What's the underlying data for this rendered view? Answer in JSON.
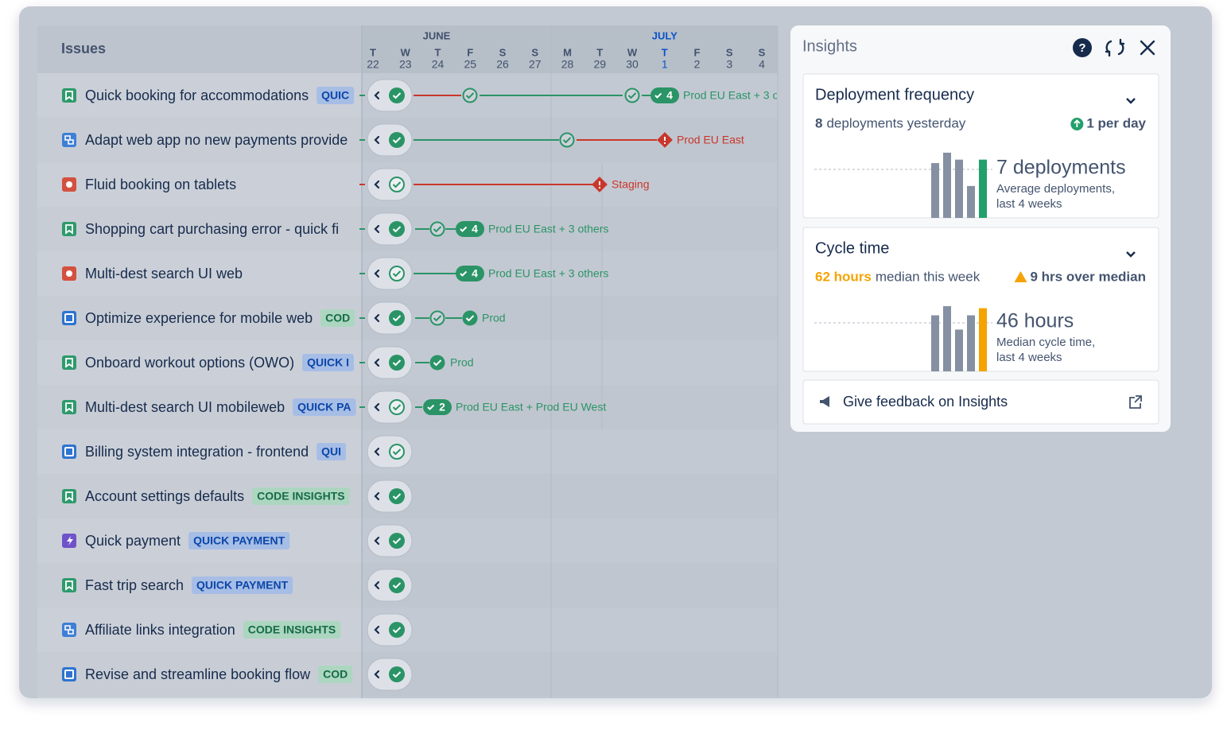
{
  "issues": {
    "header": "Issues",
    "rows": [
      {
        "title": "Quick booking for accommodations",
        "tag": "QUIC",
        "badge": "4",
        "env": "Prod EU East + 3 o"
      },
      {
        "title": "Adapt web app no new payments provide",
        "env": "Prod EU East"
      },
      {
        "title": "Fluid booking on tablets",
        "env": "Staging"
      },
      {
        "title": "Shopping cart purchasing error - quick fi",
        "badge": "4",
        "env": "Prod EU East + 3 others"
      },
      {
        "title": "Multi-dest search UI web",
        "badge": "4",
        "env": "Prod EU East + 3 others"
      },
      {
        "title": "Optimize experience for mobile web",
        "tag": "COD",
        "env": "Prod"
      },
      {
        "title": "Onboard workout options (OWO)",
        "tag": "QUICK I",
        "env": "Prod"
      },
      {
        "title": "Multi-dest search UI mobileweb",
        "tag": "QUICK PA",
        "badge": "2",
        "env": "Prod EU East + Prod EU West"
      },
      {
        "title": "Billing system integration - frontend",
        "tag": "QUI"
      },
      {
        "title": "Account settings defaults",
        "tag": "CODE INSIGHTS"
      },
      {
        "title": "Quick payment",
        "tag": "QUICK PAYMENT"
      },
      {
        "title": "Fast trip search",
        "tag": "QUICK PAYMENT"
      },
      {
        "title": "Affiliate links integration",
        "tag": "CODE INSIGHTS"
      },
      {
        "title": "Revise and streamline booking flow",
        "tag": "COD"
      }
    ]
  },
  "timeline": {
    "months": [
      "JUNE",
      "JULY"
    ],
    "days": [
      {
        "weekday": "T",
        "day": "22"
      },
      {
        "weekday": "W",
        "day": "23"
      },
      {
        "weekday": "T",
        "day": "24"
      },
      {
        "weekday": "F",
        "day": "25"
      },
      {
        "weekday": "S",
        "day": "26"
      },
      {
        "weekday": "S",
        "day": "27"
      },
      {
        "weekday": "M",
        "day": "28"
      },
      {
        "weekday": "T",
        "day": "29"
      },
      {
        "weekday": "W",
        "day": "30"
      },
      {
        "weekday": "T",
        "day": "1"
      },
      {
        "weekday": "F",
        "day": "2"
      },
      {
        "weekday": "S",
        "day": "3"
      },
      {
        "weekday": "S",
        "day": "4"
      }
    ]
  },
  "insights": {
    "title": "Insights",
    "deployment": {
      "title": "Deployment frequency",
      "count": 8,
      "count_text": "deployments yesterday",
      "trend": "1 per day",
      "headline": "7 deployments",
      "caption_1": "Average deployments,",
      "caption_2": "last 4 weeks",
      "values": [
        7.9,
        9.4,
        8.4,
        4.6,
        8.4
      ]
    },
    "cycle": {
      "title": "Cycle time",
      "current": "62 hours",
      "current_text": "median this week",
      "warning": "9 hrs over median",
      "headline": "46 hours",
      "caption_1": "Median cycle time,",
      "caption_2": "last 4 weeks",
      "values": [
        55,
        64,
        41,
        55,
        62
      ]
    },
    "feedback": "Give feedback on Insights"
  }
}
